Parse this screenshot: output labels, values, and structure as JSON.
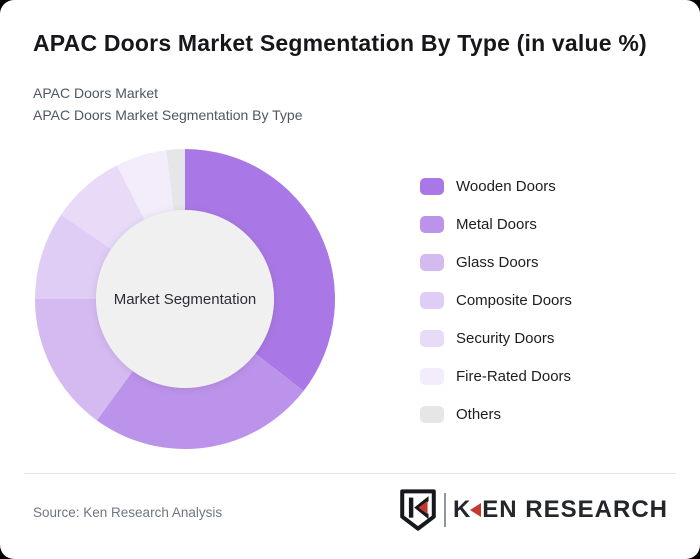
{
  "page": {
    "title": "APAC Doors Market Segmentation By Type (in value %)",
    "subtitle_line1": "APAC Doors Market",
    "subtitle_line2": "APAC Doors Market Segmentation By Type"
  },
  "chart_data": {
    "type": "pie",
    "donut": true,
    "title": "APAC Doors Market Segmentation By Type (in value %)",
    "center_label": "Market Segmentation",
    "center_fill": "#f0f0f1",
    "start_angle_deg": 0,
    "direction": "clockwise",
    "legend_position": "right",
    "outer_radius": 150,
    "inner_radius": 89,
    "segments": [
      {
        "label": "Wooden Doors",
        "value_pct": 35.5,
        "color": "#aa78e6"
      },
      {
        "label": "Metal Doors",
        "value_pct": 24.5,
        "color": "#bc93eb"
      },
      {
        "label": "Glass Doors",
        "value_pct": 15.0,
        "color": "#d5baf1"
      },
      {
        "label": "Composite Doors",
        "value_pct": 9.5,
        "color": "#e0cdf5"
      },
      {
        "label": "Security Doors",
        "value_pct": 8.0,
        "color": "#e8dbf8"
      },
      {
        "label": "Fire-Rated Doors",
        "value_pct": 5.5,
        "color": "#f2ecfb"
      },
      {
        "label": "Others",
        "value_pct": 2.0,
        "color": "#e6e6e8"
      }
    ]
  },
  "footer": {
    "source": "Source: Ken Research Analysis",
    "logo_k": "K",
    "logo_rest": "EN RESEARCH"
  },
  "colors": {
    "brand_red": "#c43a31",
    "logo_dark": "#23262b",
    "title_dark": "#15171a",
    "subtitle_gray": "#4d5763",
    "divider": "#e5e5e5"
  }
}
